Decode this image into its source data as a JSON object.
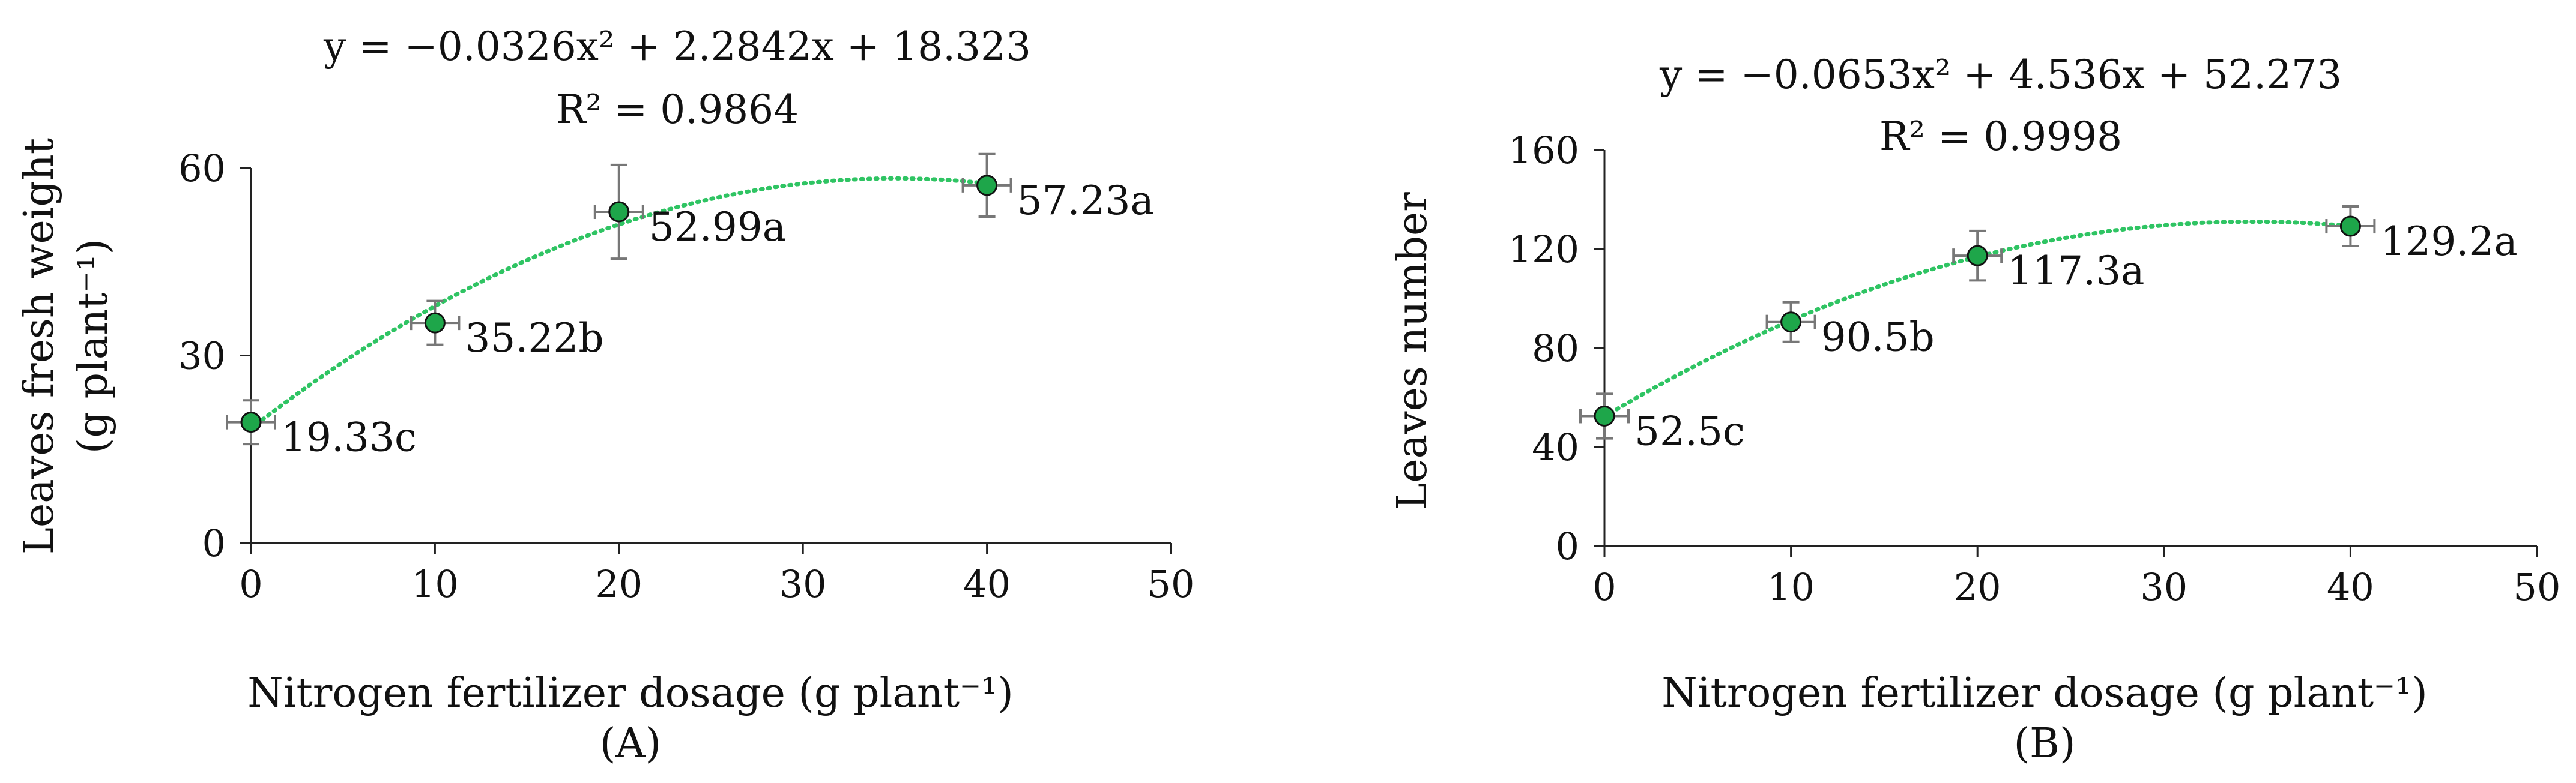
{
  "chart_data": [
    {
      "type": "scatter",
      "panel_label": "(A)",
      "equation": "y = −0.0326x² + 2.2842x + 18.323",
      "r2": "R² = 0.9864",
      "coefficients": [
        -0.0326,
        2.2842,
        18.323
      ],
      "xlabel": "Nitrogen fertilizer dosage (g plant⁻¹)",
      "ylabel_line1": "Leaves fresh weight",
      "ylabel_line2": "(g plant⁻¹)",
      "xlim": [
        0,
        50
      ],
      "ylim": [
        0,
        60
      ],
      "xticks": [
        0,
        10,
        20,
        30,
        40,
        50
      ],
      "yticks": [
        0,
        30,
        60
      ],
      "trendline_range": [
        0,
        40
      ],
      "points": [
        {
          "x": 0,
          "y": 19.33,
          "err": 3.5,
          "label": "19.33c"
        },
        {
          "x": 10,
          "y": 35.22,
          "err": 3.5,
          "label": "35.22b"
        },
        {
          "x": 20,
          "y": 52.99,
          "err": 7.5,
          "label": "52.99a"
        },
        {
          "x": 40,
          "y": 57.23,
          "err": 5.0,
          "label": "57.23a"
        }
      ],
      "marker_color": "#1ea64a",
      "trend_color": "#2fc463"
    },
    {
      "type": "scatter",
      "panel_label": "(B)",
      "equation": "y = −0.0653x² + 4.536x + 52.273",
      "r2": "R² = 0.9998",
      "coefficients": [
        -0.0653,
        4.536,
        52.273
      ],
      "xlabel": "Nitrogen fertilizer dosage (g plant⁻¹)",
      "ylabel_line1": "Leaves number",
      "ylabel_line2": "",
      "xlim": [
        0,
        50
      ],
      "ylim": [
        0,
        160
      ],
      "xticks": [
        0,
        10,
        20,
        30,
        40,
        50
      ],
      "yticks": [
        0,
        40,
        80,
        120,
        160
      ],
      "trendline_range": [
        0,
        40
      ],
      "points": [
        {
          "x": 0,
          "y": 52.5,
          "err": 9,
          "label": "52.5c"
        },
        {
          "x": 10,
          "y": 90.5,
          "err": 8,
          "label": "90.5b"
        },
        {
          "x": 20,
          "y": 117.3,
          "err": 10,
          "label": "117.3a"
        },
        {
          "x": 40,
          "y": 129.2,
          "err": 8,
          "label": "129.2a"
        }
      ],
      "marker_color": "#1ea64a",
      "trend_color": "#2fc463"
    }
  ]
}
